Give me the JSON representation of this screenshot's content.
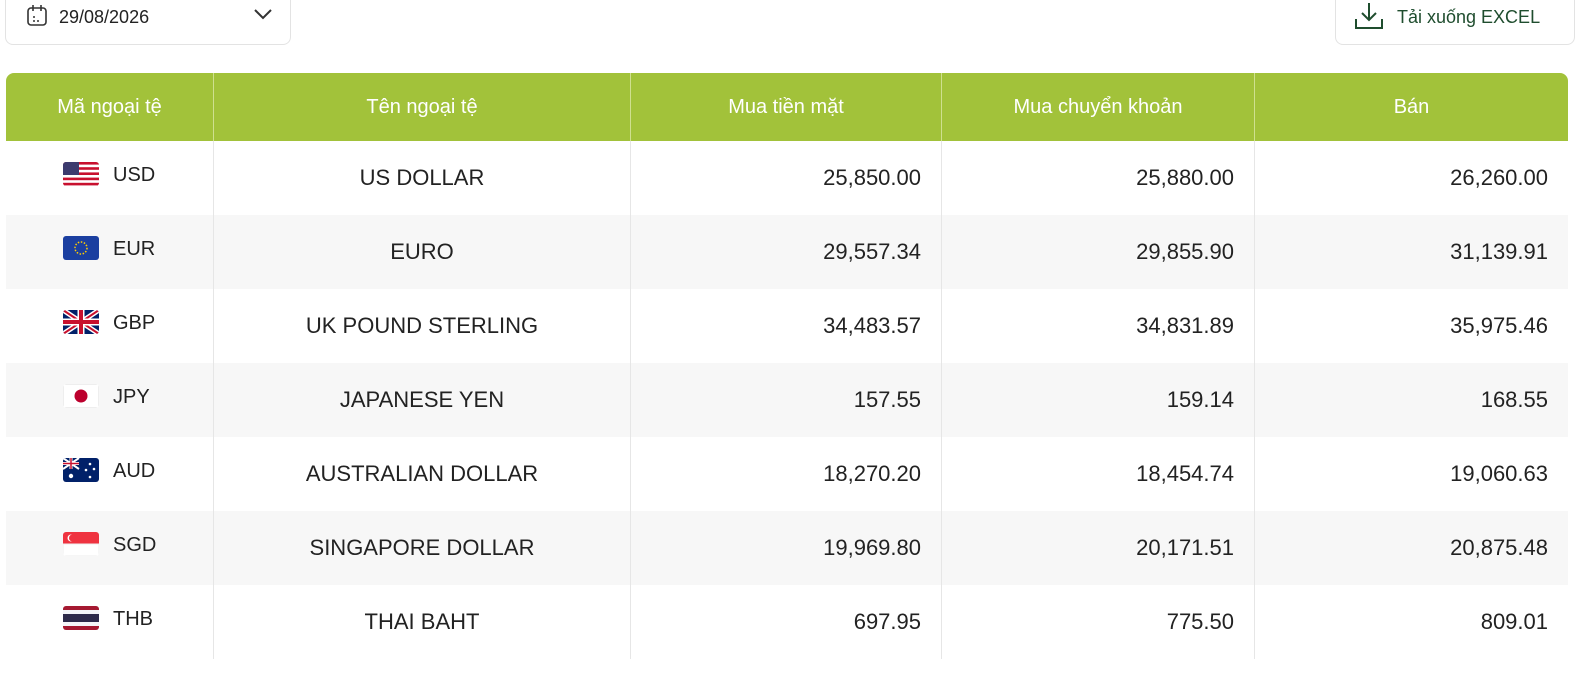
{
  "datepicker": {
    "value": "29/08/2026"
  },
  "download_button": {
    "label": "Tải xuống EXCEL"
  },
  "table": {
    "headers": [
      "Mã ngoại tệ",
      "Tên ngoại tệ",
      "Mua tiền mặt",
      "Mua chuyển khoản",
      "Bán"
    ],
    "rows": [
      [
        "USD",
        "US DOLLAR",
        "25,850.00",
        "25,880.00",
        "26,260.00"
      ],
      [
        "EUR",
        "EURO",
        "29,557.34",
        "29,855.90",
        "31,139.91"
      ],
      [
        "GBP",
        "UK POUND STERLING",
        "34,483.57",
        "34,831.89",
        "35,975.46"
      ],
      [
        "JPY",
        "JAPANESE YEN",
        "157.55",
        "159.14",
        "168.55"
      ],
      [
        "AUD",
        "AUSTRALIAN DOLLAR",
        "18,270.20",
        "18,454.74",
        "19,060.63"
      ],
      [
        "SGD",
        "SINGAPORE DOLLAR",
        "19,969.80",
        "20,171.51",
        "20,875.48"
      ],
      [
        "THB",
        "THAI BAHT",
        "697.95",
        "775.50",
        "809.01"
      ]
    ]
  }
}
